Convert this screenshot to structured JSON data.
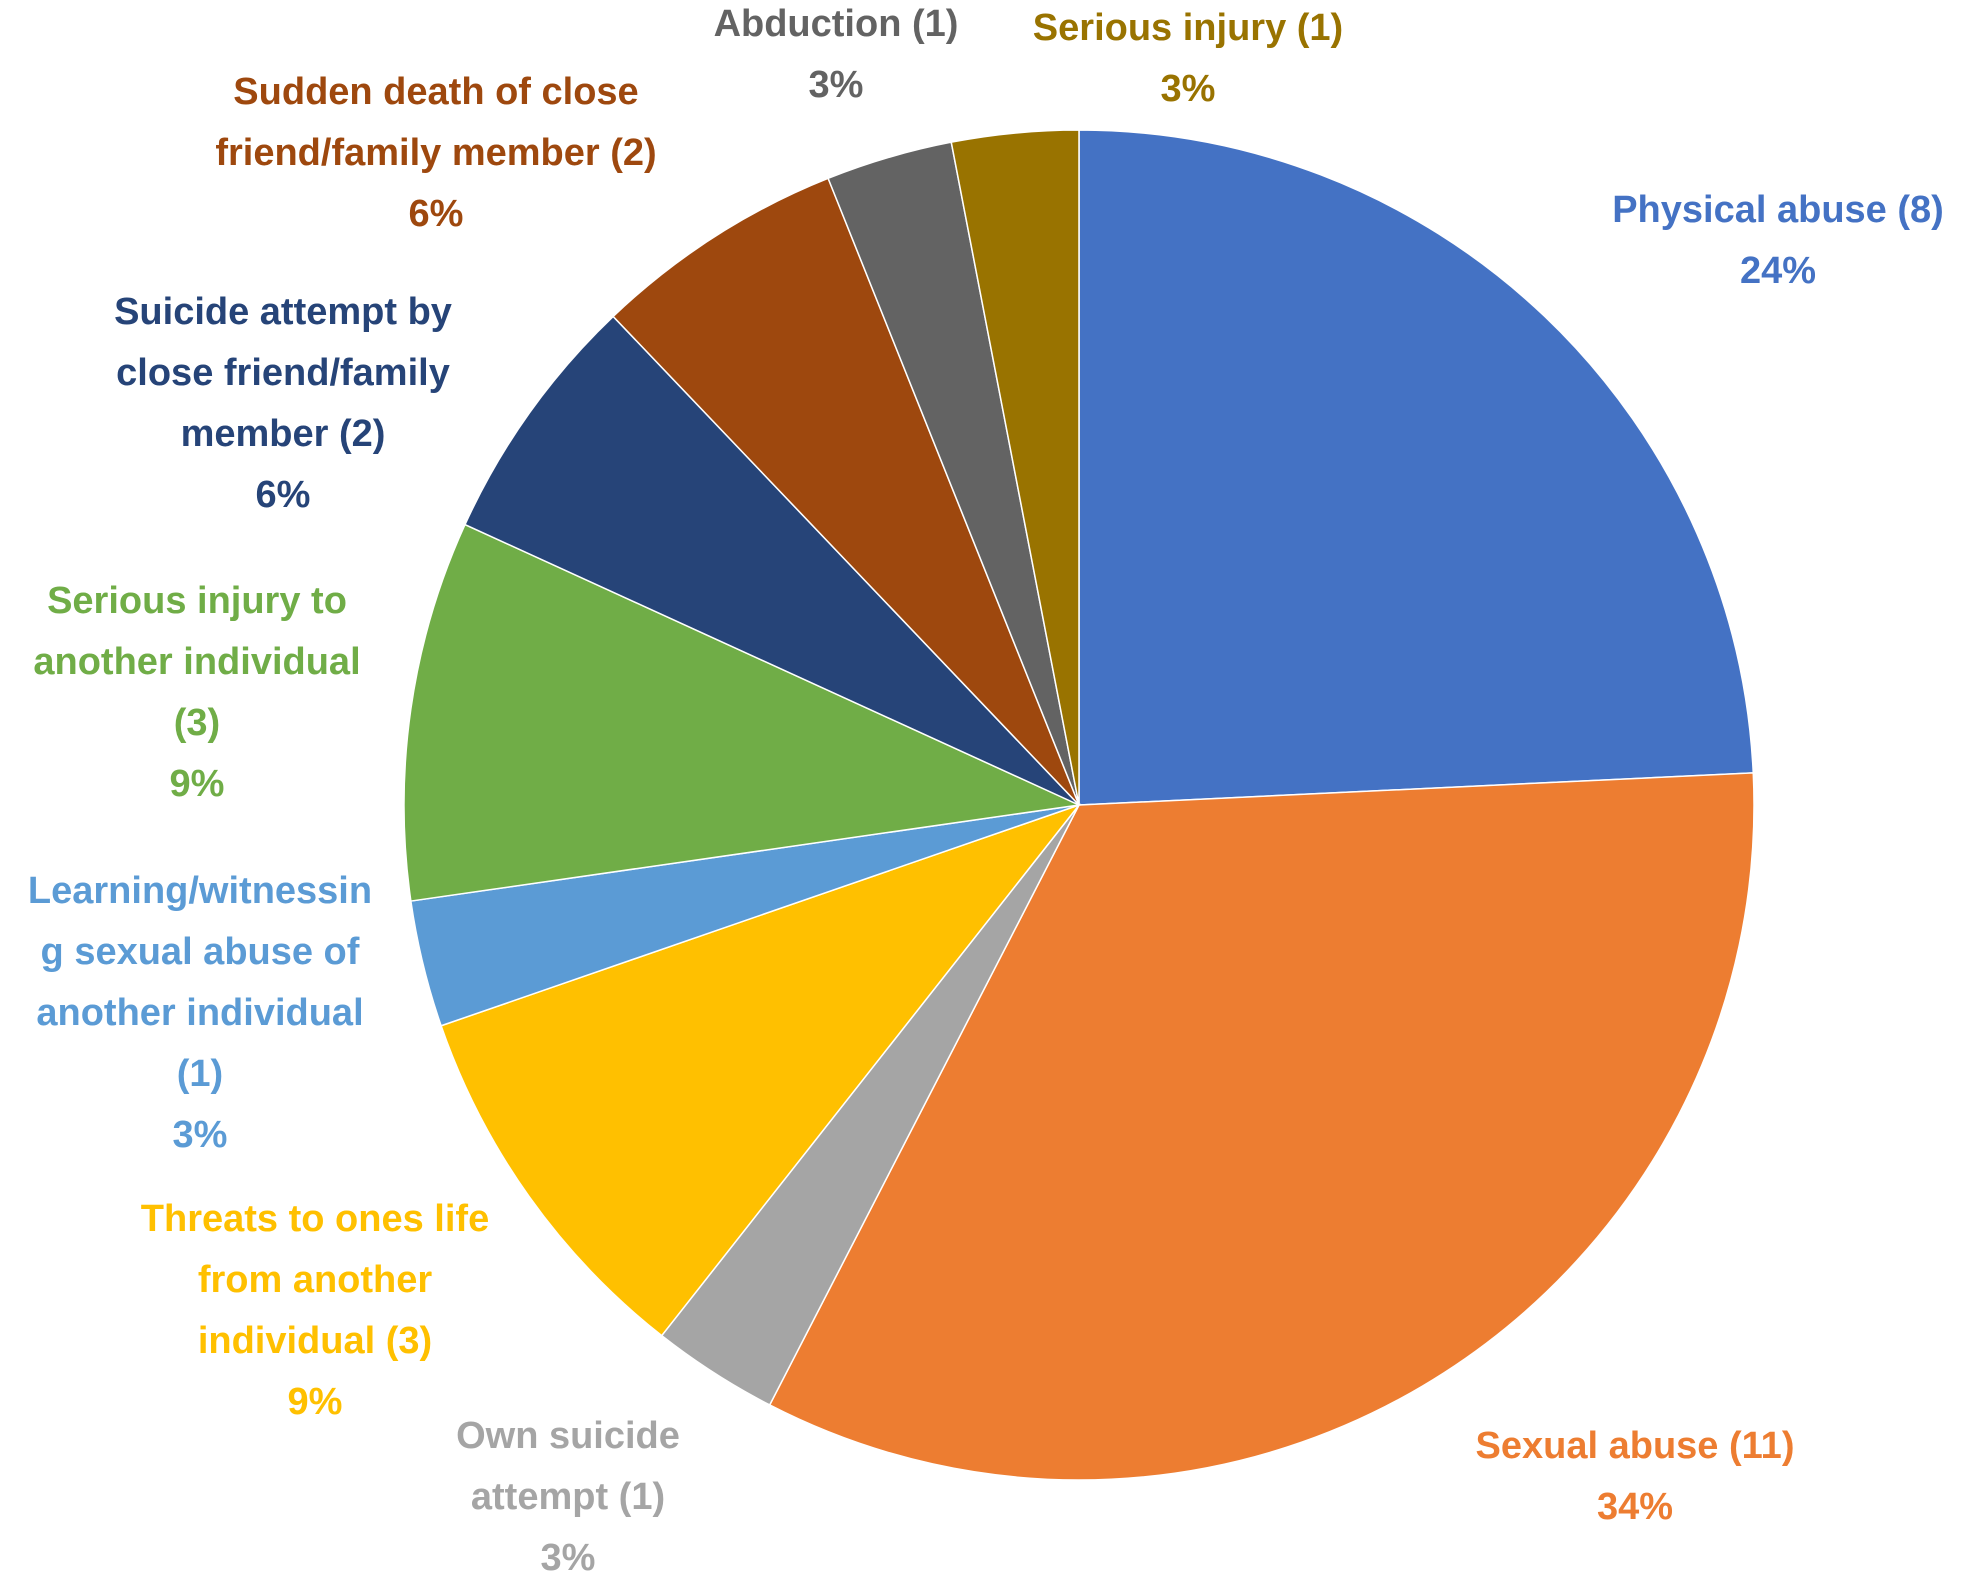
{
  "chart_data": {
    "type": "pie",
    "title": "",
    "start_angle_deg": 0,
    "direction": "clockwise",
    "slices": [
      {
        "name": "Physical abuse (8)",
        "count": 8,
        "percent_label": "24%",
        "value": 24,
        "color": "#4472C4",
        "label_lines": [
          "Physical abuse (8)",
          "24%"
        ]
      },
      {
        "name": "Sexual abuse (11)",
        "count": 11,
        "percent_label": "34%",
        "value": 34,
        "color": "#ED7D31",
        "label_lines": [
          "Sexual abuse (11)",
          "34%"
        ]
      },
      {
        "name": "Own suicide attempt (1)",
        "count": 1,
        "percent_label": "3%",
        "value": 3,
        "color": "#A5A5A5",
        "label_lines": [
          "Own suicide",
          "attempt (1)",
          "3%"
        ]
      },
      {
        "name": "Threats to ones life from another individual (3)",
        "count": 3,
        "percent_label": "9%",
        "value": 9,
        "color": "#FFC000",
        "label_lines": [
          "Threats to ones life",
          "from another",
          "individual (3)",
          "9%"
        ]
      },
      {
        "name": "Learning/witnessing sexual abuse of another individual (1)",
        "count": 1,
        "percent_label": "3%",
        "value": 3,
        "color": "#5B9BD5",
        "label_lines": [
          "Learning/witnessin",
          "g sexual abuse of",
          "another individual",
          "(1)",
          "3%"
        ]
      },
      {
        "name": "Serious injury to another individual (3)",
        "count": 3,
        "percent_label": "9%",
        "value": 9,
        "color": "#70AD47",
        "label_lines": [
          "Serious injury to",
          "another individual",
          "(3)",
          "9%"
        ]
      },
      {
        "name": "Suicide attempt by close friend/family member (2)",
        "count": 2,
        "percent_label": "6%",
        "value": 6,
        "color": "#264478",
        "label_lines": [
          "Suicide attempt by",
          "close friend/family",
          "member (2)",
          "6%"
        ]
      },
      {
        "name": "Sudden death of close friend/family member (2)",
        "count": 2,
        "percent_label": "6%",
        "value": 6,
        "color": "#9E480E",
        "label_lines": [
          "Sudden death of close",
          "friend/family member (2)",
          "6%"
        ]
      },
      {
        "name": "Abduction (1)",
        "count": 1,
        "percent_label": "3%",
        "value": 3,
        "color": "#636363",
        "label_lines": [
          "Abduction (1)",
          "3%"
        ]
      },
      {
        "name": "Serious injury (1)",
        "count": 1,
        "percent_label": "3%",
        "value": 3,
        "color": "#997300",
        "label_lines": [
          "Serious injury (1)",
          "3%"
        ]
      }
    ]
  }
}
